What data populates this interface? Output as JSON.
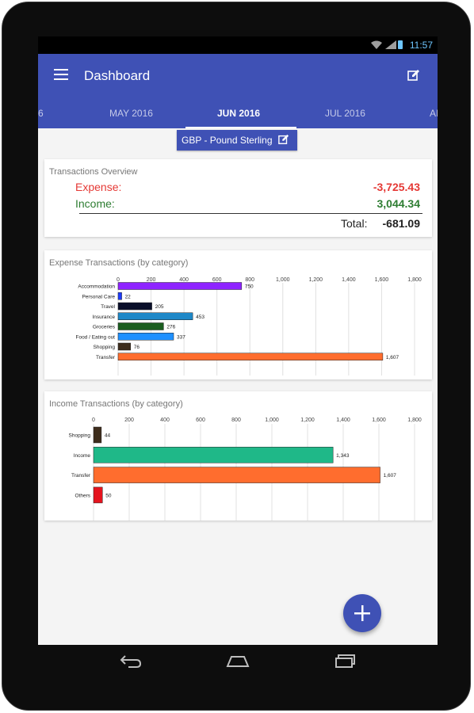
{
  "status_bar": {
    "time": "11:57"
  },
  "app_bar": {
    "title": "Dashboard"
  },
  "tabs": [
    "6",
    "MAY 2016",
    "JUN 2016",
    "JUL 2016",
    "AI"
  ],
  "selected_tab": "JUN 2016",
  "currency": {
    "label": "GBP - Pound Sterling"
  },
  "overview": {
    "title": "Transactions Overview",
    "expense_label": "Expense:",
    "expense_value": "-3,725.43",
    "income_label": "Income:",
    "income_value": "3,044.34",
    "total_label": "Total:",
    "total_value": "-681.09"
  },
  "colors": {
    "primary": "#3f51b5",
    "expense": "#e53935",
    "income": "#2e7d32"
  },
  "chart_data": [
    {
      "type": "bar",
      "orientation": "horizontal",
      "title": "Expense Transactions (by category)",
      "categories": [
        "Accommodation",
        "Personal Care",
        "Travel",
        "Insurance",
        "Groceries",
        "Food / Eating out",
        "Shopping",
        "Transfer"
      ],
      "values": [
        750,
        22,
        205,
        453,
        276,
        337,
        76,
        1607
      ],
      "labels": [
        "750",
        "22",
        "205",
        "453",
        "276",
        "337",
        "76",
        "1,607"
      ],
      "colors": [
        "#8e24ff",
        "#1e3cff",
        "#0a0f2a",
        "#1e88c8",
        "#1b5e20",
        "#1e90ff",
        "#3e2d1c",
        "#ff6d2e"
      ],
      "ticks": [
        "0",
        "200",
        "400",
        "600",
        "800",
        "1,000",
        "1,200",
        "1,400",
        "1,600",
        "1,800"
      ],
      "xlim": [
        0,
        1800
      ],
      "grid": true
    },
    {
      "type": "bar",
      "orientation": "horizontal",
      "title": "Income Transactions (by category)",
      "categories": [
        "Shopping",
        "Income",
        "Transfer",
        "Others"
      ],
      "values": [
        44,
        1343,
        1607,
        50
      ],
      "labels": [
        "44",
        "1,343",
        "1,607",
        "50"
      ],
      "colors": [
        "#3e2d1c",
        "#1fb888",
        "#ff6d2e",
        "#e5141e"
      ],
      "ticks": [
        "0",
        "200",
        "400",
        "600",
        "800",
        "1,000",
        "1,200",
        "1,400",
        "1,600",
        "1,800"
      ],
      "xlim": [
        0,
        1800
      ],
      "grid": true
    }
  ],
  "icons": {
    "menu": "hamburger-icon",
    "edit": "edit-icon",
    "fab": "plus-icon",
    "back": "back-icon",
    "home": "home-icon",
    "recents": "recents-icon"
  }
}
